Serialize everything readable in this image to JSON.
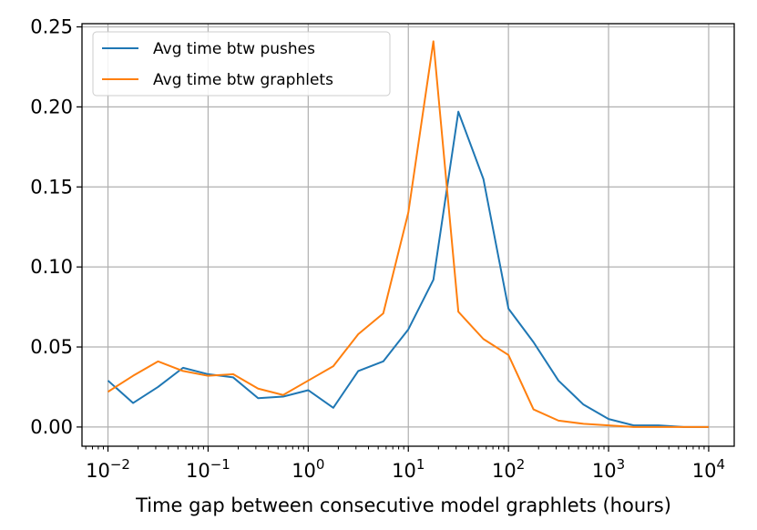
{
  "chart_data": {
    "type": "line",
    "title": "",
    "xlabel": "Time gap between consecutive model graphlets (hours)",
    "ylabel": "",
    "xscale": "log",
    "xlim": [
      0.0055,
      18000
    ],
    "ylim": [
      -0.012,
      0.252
    ],
    "grid": true,
    "legend_position": "upper-left",
    "x_ticks": [
      {
        "value": 0.01,
        "base": "10",
        "exp": "−2"
      },
      {
        "value": 0.1,
        "base": "10",
        "exp": "−1"
      },
      {
        "value": 1,
        "base": "10",
        "exp": "0"
      },
      {
        "value": 10,
        "base": "10",
        "exp": "1"
      },
      {
        "value": 100,
        "base": "10",
        "exp": "2"
      },
      {
        "value": 1000,
        "base": "10",
        "exp": "3"
      },
      {
        "value": 10000,
        "base": "10",
        "exp": "4"
      }
    ],
    "y_ticks": [
      {
        "value": 0.0,
        "label": "0.00"
      },
      {
        "value": 0.05,
        "label": "0.05"
      },
      {
        "value": 0.1,
        "label": "0.10"
      },
      {
        "value": 0.15,
        "label": "0.15"
      },
      {
        "value": 0.2,
        "label": "0.20"
      },
      {
        "value": 0.25,
        "label": "0.25"
      }
    ],
    "x": [
      0.01,
      0.0178,
      0.0316,
      0.0562,
      0.1,
      0.178,
      0.316,
      0.562,
      1,
      1.78,
      3.16,
      5.62,
      10,
      17.8,
      31.6,
      56.2,
      100,
      178,
      316,
      562,
      1000,
      1780,
      3160,
      5620,
      10000
    ],
    "series": [
      {
        "name": "Avg time btw pushes",
        "color": "#1f77b4",
        "values": [
          0.029,
          0.015,
          0.025,
          0.037,
          0.033,
          0.031,
          0.018,
          0.019,
          0.023,
          0.012,
          0.035,
          0.041,
          0.061,
          0.092,
          0.197,
          0.155,
          0.074,
          0.053,
          0.029,
          0.014,
          0.005,
          0.001,
          0.001,
          0.0,
          0.0
        ]
      },
      {
        "name": "Avg time btw graphlets",
        "color": "#ff7f0e",
        "values": [
          0.022,
          0.032,
          0.041,
          0.035,
          0.032,
          0.033,
          0.024,
          0.02,
          0.029,
          0.038,
          0.058,
          0.071,
          0.134,
          0.241,
          0.072,
          0.055,
          0.045,
          0.011,
          0.004,
          0.002,
          0.001,
          0.0,
          0.0,
          0.0,
          0.0
        ]
      }
    ]
  }
}
